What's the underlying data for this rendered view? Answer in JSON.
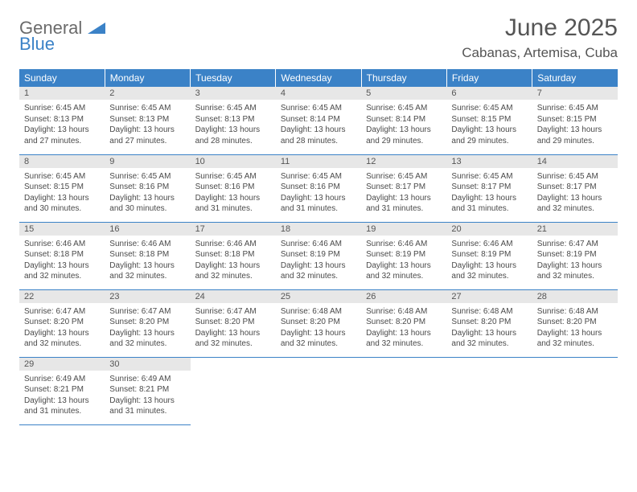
{
  "brand": {
    "line1a": "General",
    "line2": "Blue"
  },
  "title": "June 2025",
  "location": "Cabanas, Artemisa, Cuba",
  "colors": {
    "header_bg": "#3b82c7",
    "header_text": "#ffffff",
    "daynum_bg": "#e7e7e7",
    "border": "#3b82c7",
    "body_text": "#4a4a4a",
    "title_text": "#555555"
  },
  "weekdays": [
    "Sunday",
    "Monday",
    "Tuesday",
    "Wednesday",
    "Thursday",
    "Friday",
    "Saturday"
  ],
  "weeks": [
    [
      {
        "n": "1",
        "sr": "6:45 AM",
        "ss": "8:13 PM",
        "dl": "13 hours and 27 minutes."
      },
      {
        "n": "2",
        "sr": "6:45 AM",
        "ss": "8:13 PM",
        "dl": "13 hours and 27 minutes."
      },
      {
        "n": "3",
        "sr": "6:45 AM",
        "ss": "8:13 PM",
        "dl": "13 hours and 28 minutes."
      },
      {
        "n": "4",
        "sr": "6:45 AM",
        "ss": "8:14 PM",
        "dl": "13 hours and 28 minutes."
      },
      {
        "n": "5",
        "sr": "6:45 AM",
        "ss": "8:14 PM",
        "dl": "13 hours and 29 minutes."
      },
      {
        "n": "6",
        "sr": "6:45 AM",
        "ss": "8:15 PM",
        "dl": "13 hours and 29 minutes."
      },
      {
        "n": "7",
        "sr": "6:45 AM",
        "ss": "8:15 PM",
        "dl": "13 hours and 29 minutes."
      }
    ],
    [
      {
        "n": "8",
        "sr": "6:45 AM",
        "ss": "8:15 PM",
        "dl": "13 hours and 30 minutes."
      },
      {
        "n": "9",
        "sr": "6:45 AM",
        "ss": "8:16 PM",
        "dl": "13 hours and 30 minutes."
      },
      {
        "n": "10",
        "sr": "6:45 AM",
        "ss": "8:16 PM",
        "dl": "13 hours and 31 minutes."
      },
      {
        "n": "11",
        "sr": "6:45 AM",
        "ss": "8:16 PM",
        "dl": "13 hours and 31 minutes."
      },
      {
        "n": "12",
        "sr": "6:45 AM",
        "ss": "8:17 PM",
        "dl": "13 hours and 31 minutes."
      },
      {
        "n": "13",
        "sr": "6:45 AM",
        "ss": "8:17 PM",
        "dl": "13 hours and 31 minutes."
      },
      {
        "n": "14",
        "sr": "6:45 AM",
        "ss": "8:17 PM",
        "dl": "13 hours and 32 minutes."
      }
    ],
    [
      {
        "n": "15",
        "sr": "6:46 AM",
        "ss": "8:18 PM",
        "dl": "13 hours and 32 minutes."
      },
      {
        "n": "16",
        "sr": "6:46 AM",
        "ss": "8:18 PM",
        "dl": "13 hours and 32 minutes."
      },
      {
        "n": "17",
        "sr": "6:46 AM",
        "ss": "8:18 PM",
        "dl": "13 hours and 32 minutes."
      },
      {
        "n": "18",
        "sr": "6:46 AM",
        "ss": "8:19 PM",
        "dl": "13 hours and 32 minutes."
      },
      {
        "n": "19",
        "sr": "6:46 AM",
        "ss": "8:19 PM",
        "dl": "13 hours and 32 minutes."
      },
      {
        "n": "20",
        "sr": "6:46 AM",
        "ss": "8:19 PM",
        "dl": "13 hours and 32 minutes."
      },
      {
        "n": "21",
        "sr": "6:47 AM",
        "ss": "8:19 PM",
        "dl": "13 hours and 32 minutes."
      }
    ],
    [
      {
        "n": "22",
        "sr": "6:47 AM",
        "ss": "8:20 PM",
        "dl": "13 hours and 32 minutes."
      },
      {
        "n": "23",
        "sr": "6:47 AM",
        "ss": "8:20 PM",
        "dl": "13 hours and 32 minutes."
      },
      {
        "n": "24",
        "sr": "6:47 AM",
        "ss": "8:20 PM",
        "dl": "13 hours and 32 minutes."
      },
      {
        "n": "25",
        "sr": "6:48 AM",
        "ss": "8:20 PM",
        "dl": "13 hours and 32 minutes."
      },
      {
        "n": "26",
        "sr": "6:48 AM",
        "ss": "8:20 PM",
        "dl": "13 hours and 32 minutes."
      },
      {
        "n": "27",
        "sr": "6:48 AM",
        "ss": "8:20 PM",
        "dl": "13 hours and 32 minutes."
      },
      {
        "n": "28",
        "sr": "6:48 AM",
        "ss": "8:20 PM",
        "dl": "13 hours and 32 minutes."
      }
    ],
    [
      {
        "n": "29",
        "sr": "6:49 AM",
        "ss": "8:21 PM",
        "dl": "13 hours and 31 minutes."
      },
      {
        "n": "30",
        "sr": "6:49 AM",
        "ss": "8:21 PM",
        "dl": "13 hours and 31 minutes."
      },
      null,
      null,
      null,
      null,
      null
    ]
  ],
  "labels": {
    "sunrise": "Sunrise:",
    "sunset": "Sunset:",
    "daylight": "Daylight:"
  }
}
